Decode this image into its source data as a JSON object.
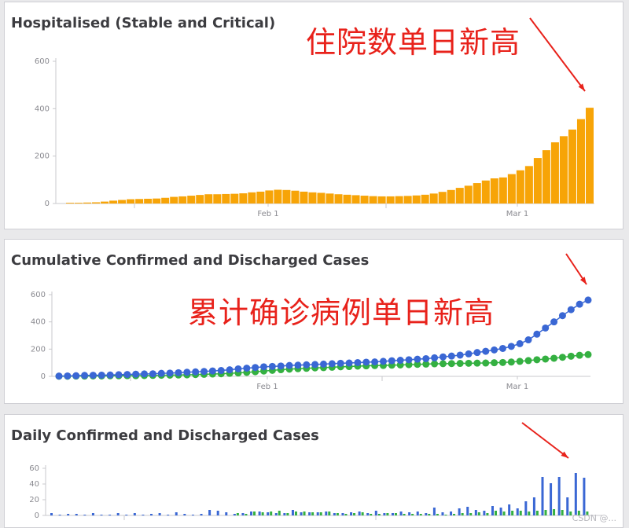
{
  "annotations": {
    "hospital_record": "住院数单日新高",
    "confirmed_record": "累计确诊病例单日新高"
  },
  "watermark": "CSDN @...",
  "colors": {
    "hospitalised": "#f7a407",
    "confirmed": "#3a67d4",
    "discharged": "#34b041",
    "annotation": "#e8221b"
  },
  "chart_data": [
    {
      "type": "bar",
      "title": "Hospitalised (Stable and Critical)",
      "x_tick_labels": [
        "Feb 1",
        "Mar 1"
      ],
      "y_ticks": [
        0,
        200,
        400,
        600
      ],
      "ylim": [
        0,
        600
      ],
      "grid": false,
      "series": [
        {
          "values": [
            3,
            3,
            4,
            5,
            8,
            12,
            15,
            18,
            19,
            20,
            21,
            24,
            28,
            30,
            33,
            36,
            39,
            39,
            40,
            41,
            43,
            47,
            50,
            55,
            58,
            57,
            54,
            50,
            47,
            45,
            42,
            39,
            37,
            35,
            33,
            31,
            30,
            30,
            31,
            32,
            34,
            37,
            42,
            49,
            57,
            66,
            75,
            86,
            97,
            106,
            110,
            124,
            140,
            158,
            192,
            225,
            258,
            284,
            312,
            356,
            404
          ]
        }
      ]
    },
    {
      "type": "scatter",
      "title": "Cumulative Confirmed and Discharged Cases",
      "x_tick_labels": [
        "Feb 1",
        "Mar 1"
      ],
      "y_ticks": [
        0,
        200,
        400,
        600
      ],
      "ylim": [
        0,
        600
      ],
      "grid": false,
      "series": [
        {
          "values": [
            2,
            3,
            5,
            7,
            8,
            9,
            10,
            12,
            14,
            16,
            18,
            19,
            22,
            24,
            27,
            30,
            33,
            36,
            40,
            43,
            48,
            55,
            60,
            65,
            70,
            73,
            76,
            80,
            82,
            85,
            87,
            90,
            93,
            96,
            98,
            101,
            104,
            106,
            110,
            115,
            118,
            122,
            126,
            130,
            136,
            143,
            149,
            156,
            165,
            175,
            184,
            194,
            205,
            220,
            240,
            268,
            310,
            355,
            400,
            446,
            490,
            530,
            560
          ]
        },
        {
          "values": [
            1,
            1,
            2,
            2,
            3,
            3,
            4,
            4,
            5,
            5,
            6,
            7,
            8,
            9,
            10,
            11,
            13,
            15,
            17,
            19,
            22,
            25,
            29,
            34,
            39,
            44,
            49,
            53,
            56,
            59,
            62,
            64,
            67,
            70,
            72,
            75,
            77,
            79,
            80,
            82,
            84,
            86,
            88,
            90,
            92,
            93,
            94,
            95,
            96,
            97,
            98,
            100,
            102,
            105,
            110,
            116,
            122,
            127,
            133,
            140,
            148,
            155,
            160
          ]
        }
      ]
    },
    {
      "type": "bar",
      "title": "Daily Confirmed and Discharged Cases",
      "y_ticks": [
        0,
        20,
        40,
        60
      ],
      "ylim": [
        0,
        60
      ],
      "grid": false,
      "series": [
        {
          "values": [
            3,
            1,
            2,
            2,
            1,
            3,
            1,
            1,
            3,
            1,
            3,
            1,
            2,
            3,
            1,
            4,
            2,
            1,
            2,
            7,
            6,
            4,
            2,
            3,
            5,
            5,
            4,
            3,
            3,
            7,
            4,
            4,
            4,
            5,
            3,
            3,
            4,
            5,
            3,
            6,
            3,
            3,
            5,
            4,
            5,
            3,
            10,
            4,
            5,
            9,
            11,
            7,
            6,
            12,
            10,
            14,
            9,
            18,
            23,
            49,
            41,
            49,
            23,
            54,
            48
          ]
        },
        {
          "values": [
            0,
            0,
            0,
            0,
            0,
            0,
            0,
            0,
            0,
            0,
            0,
            0,
            0,
            0,
            0,
            0,
            0,
            0,
            0,
            0,
            0,
            0,
            3,
            2,
            5,
            4,
            5,
            6,
            3,
            5,
            5,
            4,
            4,
            5,
            3,
            2,
            3,
            4,
            2,
            2,
            3,
            3,
            2,
            2,
            2,
            2,
            2,
            1,
            2,
            3,
            3,
            4,
            3,
            6,
            5,
            6,
            6,
            5,
            6,
            7,
            8,
            7,
            5,
            6,
            5
          ]
        }
      ]
    }
  ]
}
